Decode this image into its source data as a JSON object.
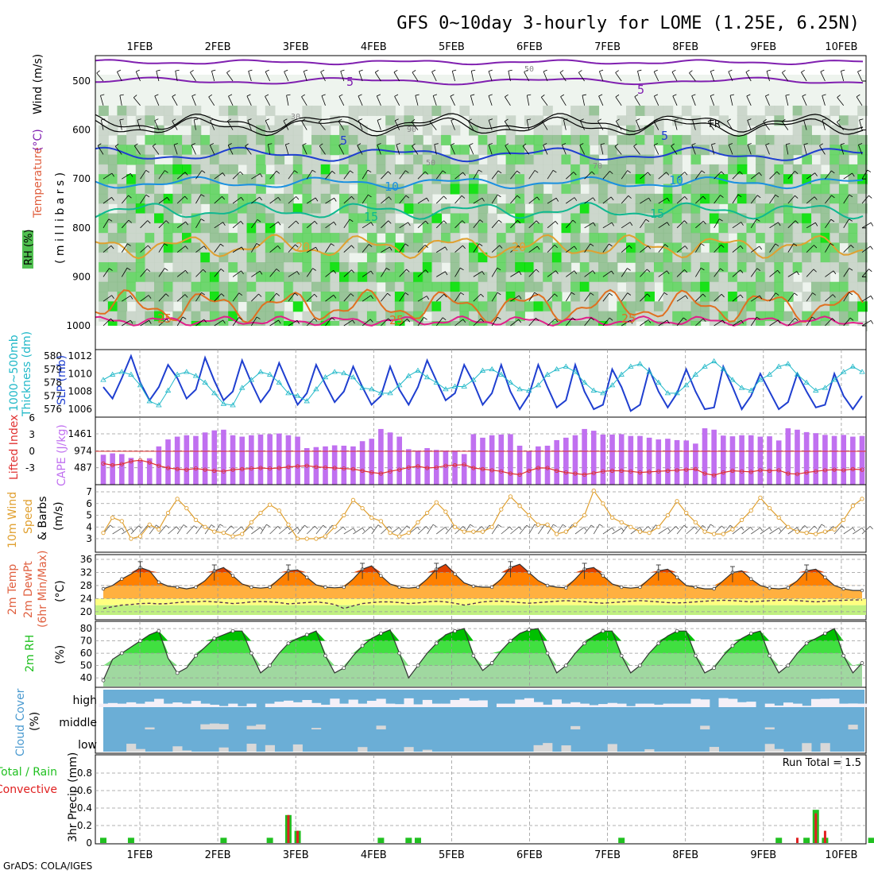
{
  "title": "GFS 0~10day 3-hourly for LOME (1.25E, 6.25N)",
  "credit": "GrADS: COLA/IGES",
  "date_labels": [
    "1FEB",
    "2FEB",
    "3FEB",
    "4FEB",
    "5FEB",
    "6FEB",
    "7FEB",
    "8FEB",
    "9FEB",
    "10FEB"
  ],
  "colors": {
    "rh_light": "#eef4ee",
    "rh_mid": "#c8d4c8",
    "rh_dark": "#8fbf8f",
    "rh_green": "#5fd35f",
    "rh_bright": "#00e000",
    "slp": "#1f3fd0",
    "thickness": "#20b8c8",
    "cape_bar": "#c070f0",
    "lifted": "#e03030",
    "wind10": "#e0a030",
    "temp_dark": "#e04000",
    "temp_orange": "#ff8000",
    "temp_light": "#ffb040",
    "dew_yellow": "#ffff80",
    "dew_green": "#c0f080",
    "rh2_dark": "#00c000",
    "rh2_mid": "#40e040",
    "rh2_light": "#80e080",
    "rh2_pale": "#a0d8a0",
    "cloud_blue": "#6baed6",
    "cloud_white": "#f4f0f8",
    "cloud_gray": "#d8d8d8",
    "precip_green": "#20c020",
    "precip_red": "#e02020"
  },
  "panels": {
    "upper": {
      "ylabel_rh": "RH (%)",
      "ylabel_temp": "Temperature",
      "ylabel_temp_unit": "(°C)",
      "ylabel_wind": "Wind (m/s)",
      "ylabel_mb": "( m i l l i b a r s )",
      "yticks": [
        500,
        600,
        700,
        800,
        900,
        1000
      ],
      "contour_labels": {
        "wind_5": "5",
        "wind_5b": "5",
        "fr": "FR",
        "t_5": "5",
        "t_5b": "5",
        "t_10": "10",
        "t_10b": "10",
        "t_15": "15",
        "t_15b": "15",
        "t_20": "20",
        "t_20b": "20",
        "t_25": "25",
        "t_25b": "25",
        "t_25c": "25",
        "rh_30": "30",
        "rh_50": "50",
        "rh_50b": "50",
        "rh_70": "70",
        "rh_90": "90"
      }
    },
    "slp": {
      "ylabel_left": "1000~500mb",
      "ylabel_left2": "Thickness (dm)",
      "ylabel_right": "SLP (mb)",
      "yticks_left": [
        576,
        577,
        578,
        579,
        580
      ],
      "yticks_right": [
        1006,
        1008,
        1010,
        1012
      ]
    },
    "cape": {
      "ylabel_li": "Lifted Index",
      "ylabel_cape": "CAPE (J/kg)",
      "yticks_li": [
        "-3",
        "0",
        "3",
        "6"
      ],
      "yticks_cape": [
        "1461",
        "974",
        "487"
      ]
    },
    "wind10": {
      "ylabel1": "10m Wind",
      "ylabel2": "Speed",
      "ylabel3": "& Barbs",
      "ylabel4": "(m/s)",
      "yticks": [
        3,
        4,
        5,
        6,
        7
      ]
    },
    "temp": {
      "ylabel1": "2m Temp",
      "ylabel2": "2m DewPt",
      "ylabel3": "(6hr Min/Max)",
      "ylabel_unit": "(°C)",
      "yticks": [
        20,
        24,
        28,
        32,
        36
      ]
    },
    "rh2m": {
      "ylabel1": "2m RH",
      "ylabel_unit": "(%)",
      "yticks": [
        40,
        50,
        60,
        70,
        80
      ]
    },
    "cloud": {
      "ylabel1": "Cloud Cover",
      "ylabel_unit": "(%)",
      "levels": [
        "high",
        "middle",
        "low"
      ]
    },
    "precip": {
      "ylabel_total": "Total / Rain",
      "ylabel_conv": "Convective",
      "ylabel": "3hr Precip (mm)",
      "run_total": "Run Total = 1.5",
      "yticks": [
        "0",
        "0.2",
        "0.4",
        "0.6",
        "0.8"
      ]
    }
  },
  "chart_data": [
    {
      "type": "heatmap",
      "description_key": "upper-air",
      "x_start": "2024-01-31T12",
      "x_step_hours": 3,
      "levels_mb": [
        500,
        600,
        700,
        800,
        900,
        1000
      ],
      "rh_sample_mean_pct": [
        20,
        35,
        50,
        60,
        70,
        75
      ]
    },
    {
      "type": "line",
      "series": [
        {
          "name": "SLP",
          "values": [
            1008.5,
            1007.2,
            1009.5,
            1012.0,
            1009.0,
            1007.0,
            1008.5,
            1011.0,
            1009.5,
            1007.2,
            1008.2,
            1011.8,
            1009.2,
            1007.0,
            1008.0,
            1011.5,
            1009.0,
            1006.8,
            1008.2,
            1011.2,
            1008.8,
            1006.5,
            1007.8,
            1011.0,
            1008.8,
            1006.8,
            1008.0,
            1010.8,
            1008.5,
            1006.5,
            1007.5,
            1010.8,
            1008.2,
            1006.5,
            1008.5,
            1011.5,
            1009.2,
            1007.0,
            1007.8,
            1011.0,
            1009.0,
            1006.5,
            1007.8,
            1011.0,
            1008.0,
            1006.0,
            1007.6,
            1011.0,
            1008.5,
            1006.2,
            1007.0,
            1011.0,
            1008.0,
            1006.0,
            1006.5,
            1010.5,
            1008.5,
            1005.8,
            1006.5,
            1010.5,
            1008.0,
            1006.2,
            1007.8,
            1010.5,
            1008.0,
            1006.0,
            1006.2,
            1010.8,
            1008.5,
            1006.0,
            1007.5,
            1010.0,
            1008.0,
            1006.0,
            1006.8,
            1010.0,
            1008.0,
            1006.2,
            1006.5,
            1010.0,
            1007.5,
            1006.0,
            1007.5
          ]
        },
        {
          "name": "Thickness",
          "values": [
            578.2,
            578.6,
            578.8,
            578.6,
            577.8,
            576.6,
            576.3,
            577.4,
            578.6,
            578.8,
            578.5,
            578.0,
            577.2,
            576.4,
            576.3,
            577.6,
            578.2,
            578.8,
            578.6,
            578.0,
            577.2,
            577.0,
            576.6,
            577.5,
            578.4,
            578.8,
            578.7,
            578.4,
            577.6,
            577.5,
            577.2,
            577.2,
            577.8,
            578.5,
            578.9,
            578.4,
            578.0,
            577.5,
            577.7,
            577.7,
            578.2,
            578.9,
            579.0,
            578.6,
            578.0,
            577.5,
            577.4,
            577.8,
            578.6,
            579.0,
            579.2,
            578.8,
            578.0,
            577.4,
            577.2,
            577.8,
            578.6,
            579.2,
            579.4,
            578.8,
            578.0,
            577.2,
            577.2,
            577.8,
            578.6,
            579.2,
            579.6,
            579.0,
            578.2,
            577.6,
            577.4,
            578.2,
            578.6,
            579.2,
            579.4,
            578.6,
            578.0,
            577.4,
            577.6,
            578.2,
            578.8,
            579.2,
            578.8
          ]
        }
      ]
    },
    {
      "type": "bar",
      "series": [
        {
          "name": "CAPE",
          "values": [
            860,
            900,
            880,
            770,
            700,
            760,
            1100,
            1300,
            1380,
            1420,
            1400,
            1500,
            1560,
            1580,
            1420,
            1380,
            1420,
            1440,
            1450,
            1470,
            1420,
            1380,
            1050,
            1080,
            1100,
            1130,
            1120,
            1100,
            1250,
            1320,
            1600,
            1500,
            1380,
            1020,
            980,
            1050,
            1000,
            980,
            980,
            880,
            1450,
            1350,
            1420,
            1440,
            1450,
            1120,
            960,
            1100,
            1120,
            1280,
            1350,
            1420,
            1600,
            1550,
            1440,
            1440,
            1450,
            1400,
            1400,
            1350,
            1300,
            1320,
            1280,
            1270,
            1180,
            1620,
            1580,
            1410,
            1390,
            1420,
            1420,
            1380,
            1390,
            1270,
            1620,
            1580,
            1510,
            1480,
            1430,
            1400,
            1430,
            1380,
            1400
          ]
        },
        {
          "name": "Lifted Index",
          "values": [
            -2.2,
            -2.5,
            -2.3,
            -1.8,
            -1.6,
            -2.0,
            -2.6,
            -3.0,
            -3.2,
            -3.3,
            -3.1,
            -3.3,
            -3.5,
            -3.6,
            -3.3,
            -3.2,
            -3.1,
            -3.0,
            -3.1,
            -3.0,
            -2.8,
            -2.7,
            -2.6,
            -2.8,
            -2.9,
            -3.0,
            -3.1,
            -3.2,
            -3.5,
            -3.8,
            -4.0,
            -3.6,
            -3.3,
            -2.9,
            -2.7,
            -3.0,
            -2.9,
            -2.6,
            -2.5,
            -2.4,
            -3.0,
            -3.2,
            -3.4,
            -3.6,
            -4.0,
            -4.2,
            -3.5,
            -3.0,
            -3.0,
            -3.5,
            -3.8,
            -4.0,
            -4.2,
            -3.9,
            -3.6,
            -3.5,
            -3.5,
            -3.6,
            -3.8,
            -3.7,
            -3.6,
            -3.5,
            -3.4,
            -3.3,
            -3.2,
            -4.0,
            -4.3,
            -3.8,
            -3.5,
            -3.6,
            -3.7,
            -3.4,
            -3.5,
            -3.4,
            -4.0,
            -4.1,
            -3.8,
            -3.6,
            -3.4,
            -3.3,
            -3.4,
            -3.2,
            -3.3
          ]
        }
      ]
    },
    {
      "type": "line",
      "series": [
        {
          "name": "10m Wind Speed",
          "values": [
            3.5,
            4.8,
            4.5,
            3.0,
            3.2,
            4.2,
            3.8,
            5.2,
            6.4,
            5.6,
            4.6,
            4.0,
            3.6,
            3.5,
            3.2,
            3.4,
            4.4,
            5.2,
            5.9,
            5.4,
            4.2,
            3.0,
            3.0,
            3.0,
            3.2,
            4.0,
            5.0,
            6.3,
            5.6,
            4.8,
            4.5,
            3.5,
            3.2,
            3.5,
            4.4,
            5.2,
            6.1,
            5.3,
            4.0,
            3.6,
            3.6,
            3.6,
            4.0,
            5.5,
            6.6,
            5.8,
            5.0,
            4.2,
            4.2,
            3.4,
            3.6,
            4.2,
            5.0,
            7.1,
            6.0,
            4.8,
            4.4,
            4.0,
            3.6,
            3.5,
            4.0,
            5.0,
            6.2,
            5.2,
            4.4,
            3.6,
            3.4,
            3.4,
            3.8,
            4.6,
            5.4,
            6.5,
            5.6,
            4.8,
            4.0,
            3.6,
            3.5,
            3.4,
            3.6,
            3.8,
            4.6,
            5.8,
            6.4
          ]
        }
      ]
    },
    {
      "type": "area",
      "series": [
        {
          "name": "2m Temp",
          "values": [
            27.0,
            28.0,
            30.0,
            31.5,
            33.5,
            32.5,
            29.0,
            27.8,
            27.5,
            27.0,
            27.5,
            29.5,
            32.5,
            33.5,
            31.0,
            28.5,
            27.5,
            27.2,
            27.5,
            30.0,
            32.5,
            32.8,
            30.5,
            28.2,
            27.5,
            27.3,
            27.5,
            30.0,
            33.0,
            34.0,
            31.0,
            28.5,
            27.5,
            27.2,
            27.5,
            30.0,
            33.0,
            34.5,
            31.5,
            28.8,
            27.8,
            27.5,
            27.5,
            30.0,
            33.5,
            34.5,
            32.0,
            29.5,
            28.0,
            27.5,
            27.3,
            30.0,
            33.0,
            33.5,
            31.0,
            28.5,
            27.5,
            27.2,
            27.5,
            30.0,
            32.5,
            33.0,
            30.5,
            28.0,
            27.5,
            27.0,
            27.0,
            29.5,
            32.0,
            32.5,
            30.0,
            28.0,
            27.2,
            27.0,
            27.3,
            29.5,
            32.5,
            33.0,
            30.5,
            28.0,
            27.0,
            26.5,
            26.5
          ]
        },
        {
          "name": "2m DewPt",
          "values": [
            21.0,
            21.5,
            22.0,
            22.2,
            22.5,
            22.6,
            22.4,
            22.5,
            22.8,
            23.0,
            23.0,
            23.2,
            23.0,
            22.8,
            22.5,
            22.7,
            23.0,
            23.1,
            23.0,
            22.8,
            22.4,
            22.6,
            22.8,
            23.0,
            22.7,
            22.2,
            21.0,
            21.8,
            22.5,
            22.8,
            23.0,
            23.0,
            22.8,
            22.5,
            22.7,
            23.0,
            23.2,
            23.0,
            22.6,
            22.0,
            22.5,
            23.0,
            23.2,
            23.2,
            23.0,
            22.8,
            22.6,
            22.8,
            23.0,
            23.2,
            23.4,
            23.2,
            23.0,
            22.8,
            22.6,
            22.8,
            23.0,
            23.2,
            23.4,
            23.2,
            23.0,
            22.8,
            22.7,
            22.8,
            23.0,
            23.2,
            23.4,
            23.5,
            23.4,
            23.2,
            23.0,
            23.2,
            23.4,
            23.5,
            23.6,
            23.4,
            23.2,
            23.0,
            23.2,
            23.4,
            23.5,
            23.6,
            23.6
          ]
        }
      ]
    },
    {
      "type": "area",
      "series": [
        {
          "name": "2m RH",
          "values": [
            38,
            55,
            60,
            65,
            70,
            75,
            78,
            56,
            44,
            48,
            58,
            65,
            72,
            75,
            78,
            78,
            60,
            44,
            50,
            60,
            68,
            72,
            75,
            78,
            58,
            44,
            48,
            58,
            66,
            72,
            76,
            79,
            60,
            40,
            50,
            60,
            68,
            75,
            78,
            80,
            58,
            46,
            52,
            62,
            70,
            76,
            79,
            80,
            60,
            44,
            50,
            60,
            68,
            74,
            78,
            78,
            58,
            44,
            50,
            60,
            68,
            74,
            78,
            78,
            58,
            44,
            48,
            58,
            66,
            72,
            76,
            78,
            58,
            44,
            50,
            60,
            68,
            72,
            76,
            80,
            58,
            44,
            52
          ]
        }
      ]
    },
    {
      "type": "heatmap",
      "levels": [
        "high",
        "middle",
        "low"
      ]
    },
    {
      "type": "bar",
      "run_total": 1.5,
      "series": [
        {
          "name": "Total",
          "values": [
            0.06,
            0,
            0,
            0.06,
            0,
            0,
            0,
            0,
            0,
            0,
            0,
            0,
            0,
            0.06,
            0,
            0,
            0,
            0,
            0.06,
            0,
            0.32,
            0.14,
            0,
            0,
            0,
            0,
            0,
            0,
            0,
            0,
            0.06,
            0,
            0,
            0.06,
            0.06,
            0,
            0,
            0,
            0,
            0,
            0,
            0,
            0,
            0,
            0,
            0,
            0,
            0,
            0,
            0,
            0,
            0,
            0,
            0,
            0,
            0,
            0.06,
            0,
            0,
            0,
            0,
            0,
            0,
            0,
            0,
            0,
            0,
            0,
            0,
            0,
            0,
            0,
            0,
            0.06,
            0,
            0,
            0.06,
            0.38,
            0.06,
            0,
            0,
            0,
            0,
            0.06
          ]
        },
        {
          "name": "Convective",
          "values": [
            0,
            0,
            0,
            0,
            0,
            0,
            0,
            0,
            0,
            0,
            0,
            0,
            0,
            0,
            0,
            0,
            0,
            0,
            0,
            0,
            0.32,
            0.14,
            0,
            0,
            0,
            0,
            0,
            0,
            0,
            0,
            0,
            0,
            0,
            0,
            0,
            0,
            0,
            0,
            0,
            0,
            0,
            0,
            0,
            0,
            0,
            0,
            0,
            0,
            0,
            0,
            0,
            0,
            0,
            0,
            0,
            0,
            0,
            0,
            0,
            0,
            0,
            0,
            0,
            0,
            0,
            0,
            0,
            0,
            0,
            0,
            0,
            0,
            0,
            0,
            0,
            0.06,
            0,
            0.34,
            0.14,
            0,
            0,
            0,
            0,
            0
          ]
        }
      ]
    }
  ]
}
